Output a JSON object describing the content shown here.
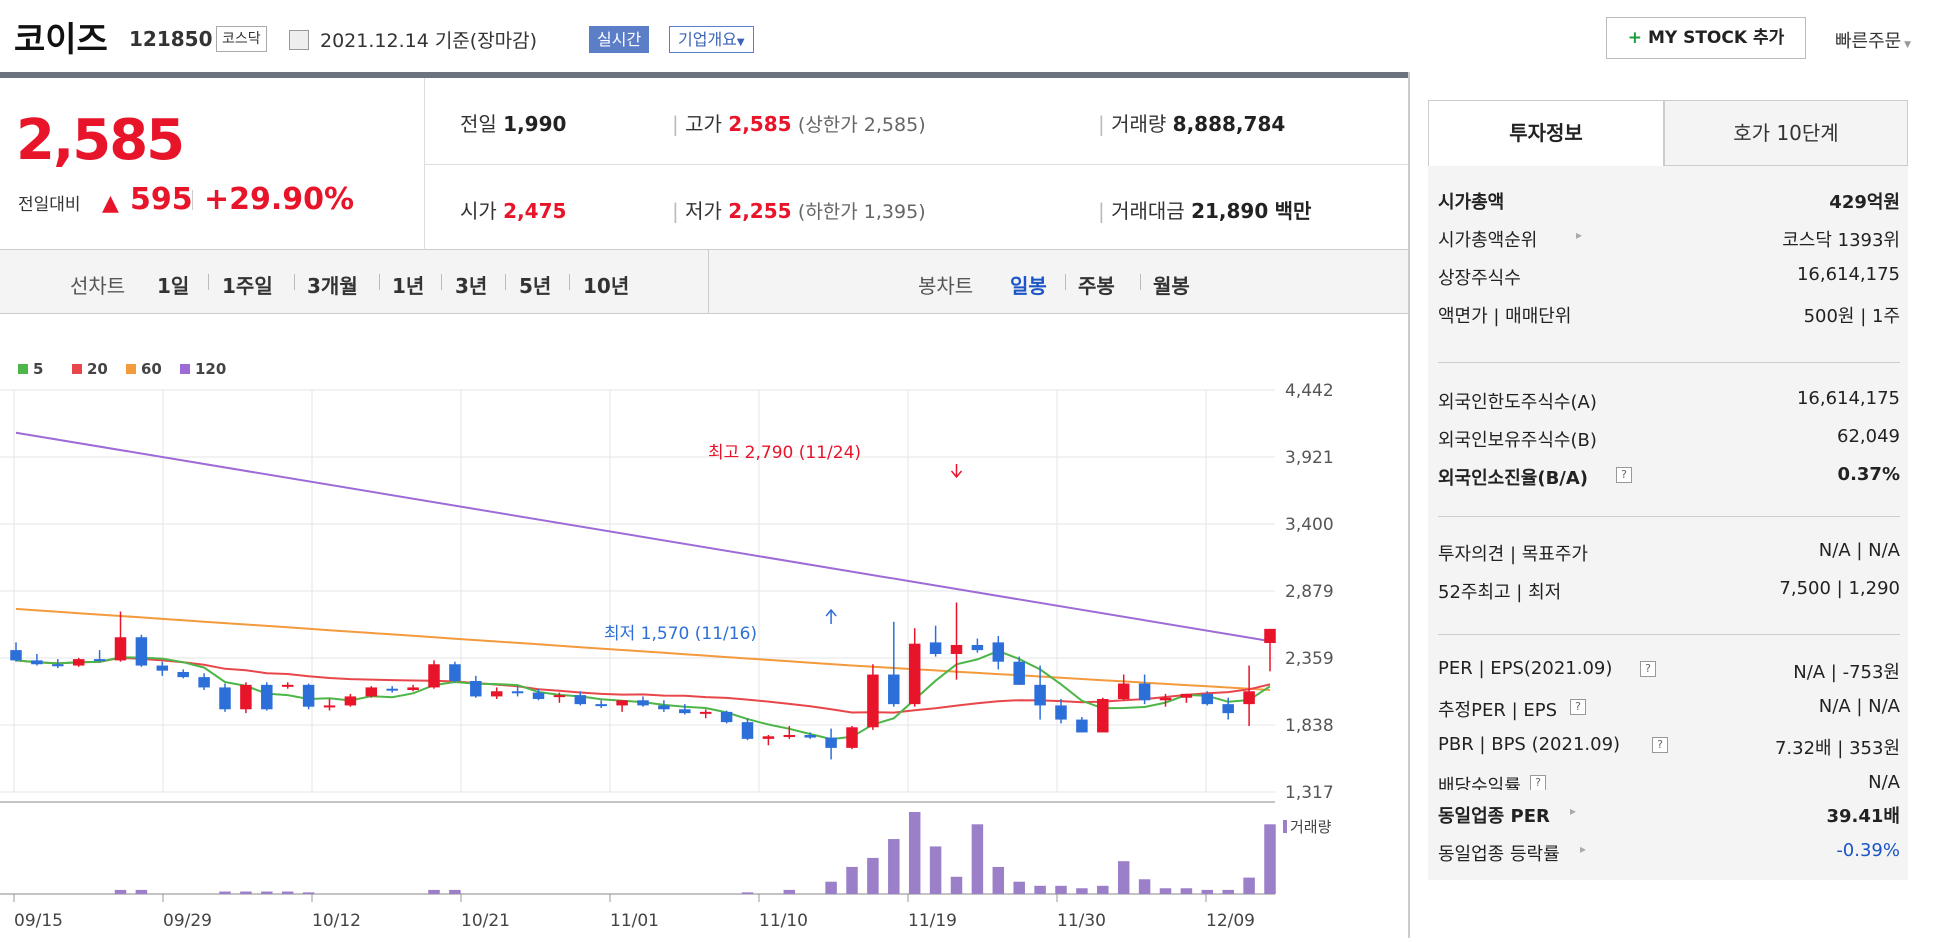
{
  "header": {
    "name": "코이즈",
    "code": "121850",
    "market": "코스닥",
    "date": "2021.12.14 기준(장마감)",
    "realtime": "실시간",
    "overview": "기업개요",
    "my_stock": "MY STOCK 추가",
    "quick_order": "빠른주문"
  },
  "price": {
    "current": "2,585",
    "compare_label": "전일대비",
    "diff": "595",
    "rate": "+29.90%"
  },
  "summary": {
    "prev_label": "전일",
    "prev": "1,990",
    "high_label": "고가",
    "high": "2,585",
    "upper_limit": "(상한가 2,585)",
    "volume_label": "거래량",
    "volume": "8,888,784",
    "open_label": "시가",
    "open": "2,475",
    "low_label": "저가",
    "low": "2,255",
    "lower_limit": "(하한가 1,395)",
    "amount_label": "거래대금",
    "amount": "21,890",
    "amount_unit": "백만"
  },
  "periods": {
    "label": "선차트",
    "items": [
      "1일",
      "1주일",
      "3개월",
      "1년",
      "3년",
      "5년",
      "10년"
    ],
    "candle_label": "봉차트",
    "candle_items": [
      "일봉",
      "주봉",
      "월봉"
    ],
    "active": "일봉"
  },
  "chart_data": {
    "type": "candlestick",
    "legend": [
      {
        "name": "5",
        "color": "#4cb648"
      },
      {
        "name": "20",
        "color": "#e8464a"
      },
      {
        "name": "60",
        "color": "#f39a3c"
      },
      {
        "name": "120",
        "color": "#9d6bd6"
      }
    ],
    "y_ticks": [
      "4,442",
      "3,921",
      "3,400",
      "2,879",
      "2,359",
      "1,838",
      "1,317"
    ],
    "ylim": [
      1317,
      4442
    ],
    "x_ticks": [
      "09/15",
      "09/29",
      "10/12",
      "10/21",
      "11/01",
      "11/10",
      "11/19",
      "11/30",
      "12/09"
    ],
    "high_annotation": "최고 2,790 (11/24)",
    "low_annotation": "최저 1,570 (11/16)",
    "volume_label": "거래량",
    "candles": [
      [
        2420,
        2480,
        2330,
        2340
      ],
      [
        2340,
        2390,
        2300,
        2310
      ],
      [
        2310,
        2350,
        2280,
        2300
      ],
      [
        2300,
        2360,
        2290,
        2350
      ],
      [
        2350,
        2420,
        2330,
        2340
      ],
      [
        2340,
        2720,
        2330,
        2520
      ],
      [
        2520,
        2540,
        2290,
        2300
      ],
      [
        2300,
        2330,
        2220,
        2260
      ],
      [
        2250,
        2270,
        2200,
        2210
      ],
      [
        2210,
        2240,
        2110,
        2130
      ],
      [
        2130,
        2160,
        1940,
        1960
      ],
      [
        1960,
        2170,
        1930,
        2150
      ],
      [
        2150,
        2170,
        1950,
        1960
      ],
      [
        2140,
        2170,
        2120,
        2150
      ],
      [
        2150,
        2160,
        1960,
        1980
      ],
      [
        1980,
        2040,
        1950,
        1990
      ],
      [
        1990,
        2080,
        1980,
        2060
      ],
      [
        2060,
        2140,
        2050,
        2130
      ],
      [
        2120,
        2140,
        2090,
        2110
      ],
      [
        2110,
        2150,
        2100,
        2130
      ],
      [
        2130,
        2340,
        2120,
        2310
      ],
      [
        2310,
        2330,
        2170,
        2180
      ],
      [
        2180,
        2220,
        2050,
        2060
      ],
      [
        2060,
        2130,
        2040,
        2100
      ],
      [
        2100,
        2140,
        2060,
        2090
      ],
      [
        2090,
        2120,
        2030,
        2040
      ],
      [
        2060,
        2090,
        2010,
        2070
      ],
      [
        2070,
        2100,
        1990,
        2000
      ],
      [
        2000,
        2030,
        1970,
        1990
      ],
      [
        1990,
        2030,
        1940,
        2030
      ],
      [
        2030,
        2060,
        1980,
        1990
      ],
      [
        1990,
        2030,
        1940,
        1960
      ],
      [
        1960,
        2000,
        1920,
        1930
      ],
      [
        1930,
        1960,
        1890,
        1940
      ],
      [
        1940,
        1950,
        1850,
        1860
      ],
      [
        1860,
        1890,
        1720,
        1730
      ],
      [
        1730,
        1760,
        1680,
        1750
      ],
      [
        1750,
        1830,
        1730,
        1760
      ],
      [
        1760,
        1780,
        1730,
        1740
      ],
      [
        1740,
        1810,
        1570,
        1660
      ],
      [
        1660,
        1830,
        1650,
        1820
      ],
      [
        1820,
        2310,
        1800,
        2230
      ],
      [
        2230,
        2640,
        1980,
        2000
      ],
      [
        2000,
        2590,
        1980,
        2470
      ],
      [
        2480,
        2610,
        2370,
        2390
      ],
      [
        2390,
        2790,
        2190,
        2460
      ],
      [
        2460,
        2510,
        2400,
        2420
      ],
      [
        2480,
        2530,
        2270,
        2330
      ],
      [
        2330,
        2370,
        2150,
        2150
      ],
      [
        2150,
        2300,
        1880,
        1990
      ],
      [
        1990,
        2040,
        1850,
        1880
      ],
      [
        1880,
        1900,
        1780,
        1780
      ],
      [
        1780,
        2050,
        1790,
        2040
      ],
      [
        2040,
        2230,
        2030,
        2160
      ],
      [
        2160,
        2230,
        2000,
        2030
      ],
      [
        2030,
        2080,
        1980,
        2050
      ],
      [
        2050,
        2080,
        2010,
        2080
      ],
      [
        2080,
        2100,
        1990,
        2000
      ],
      [
        2000,
        2050,
        1880,
        1930
      ],
      [
        2000,
        2300,
        1830,
        2100
      ],
      [
        2475,
        2585,
        2255,
        2585
      ]
    ],
    "ma120": [
      [
        0,
        4110
      ],
      [
        60,
        2490
      ]
    ],
    "volume_rel": [
      0,
      0,
      0,
      0,
      0,
      0.05,
      0.05,
      0,
      0,
      0,
      0.03,
      0.03,
      0.03,
      0.03,
      0.02,
      0,
      0,
      0,
      0,
      0,
      0.05,
      0.05,
      0,
      0,
      0,
      0,
      0,
      0,
      0,
      0,
      0,
      0,
      0,
      0,
      0,
      0.02,
      0,
      0.05,
      0,
      0.15,
      0.33,
      0.44,
      0.67,
      1.0,
      0.58,
      0.21,
      0.85,
      0.33,
      0.15,
      0.1,
      0.1,
      0.07,
      0.1,
      0.4,
      0.18,
      0.07,
      0.07,
      0.05,
      0.05,
      0.2,
      0.85
    ]
  },
  "side": {
    "tab_active": "투자정보",
    "tab_other": "호가 10단계",
    "rows1": [
      [
        "시가총액",
        "429억원"
      ],
      [
        "시가총액순위",
        "코스닥 1393위"
      ],
      [
        "상장주식수",
        "16,614,175"
      ],
      [
        "액면가 | 매매단위",
        "500원 | 1주"
      ]
    ],
    "rows2": [
      [
        "외국인한도주식수(A)",
        "16,614,175"
      ],
      [
        "외국인보유주식수(B)",
        "62,049"
      ],
      [
        "외국인소진율(B/A)",
        "0.37%"
      ]
    ],
    "rows3": [
      [
        "투자의견 | 목표주가",
        "N/A | N/A"
      ],
      [
        "52주최고 | 최저",
        "7,500 | 1,290"
      ]
    ],
    "rows4": [
      [
        "PER | EPS(2021.09)",
        "N/A | -753원"
      ],
      [
        "추정PER | EPS",
        "N/A | N/A"
      ],
      [
        "PBR | BPS (2021.09)",
        "7.32배 | 353원"
      ],
      [
        "배당수익률",
        "N/A"
      ]
    ],
    "rows5": [
      [
        "동일업종 PER",
        "39.41배"
      ],
      [
        "동일업종 등락률",
        "-0.39%"
      ]
    ]
  }
}
